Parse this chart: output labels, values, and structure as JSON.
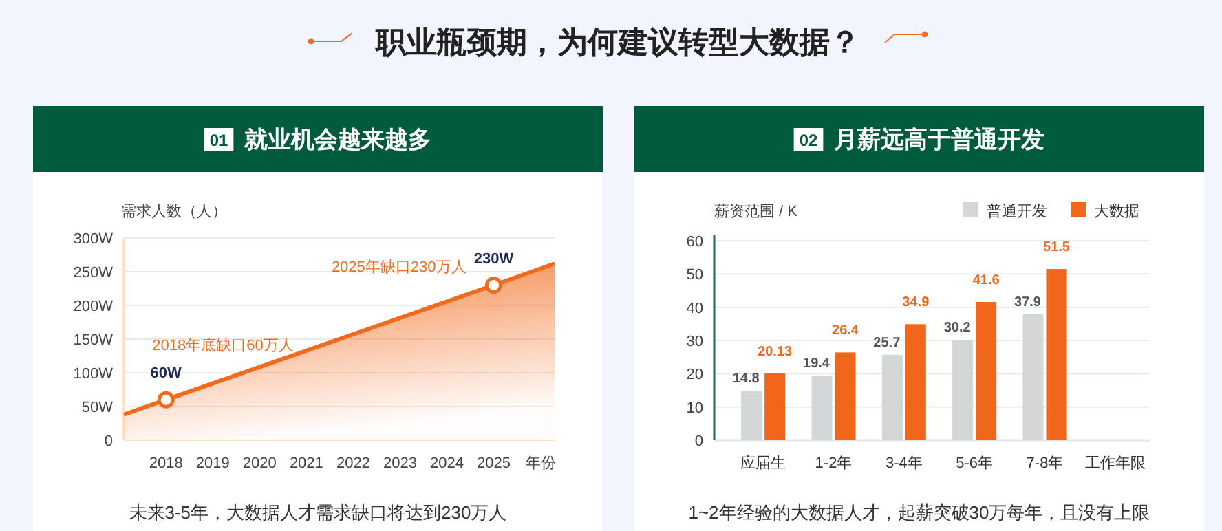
{
  "chart_data": [
    {
      "type": "other",
      "title": "职业瓶颈期，为何建议转型大数据？"
    },
    {
      "type": "line",
      "title": "就业机会越来越多",
      "ylabel": "需求人数（人）",
      "xlabel": "年份",
      "xlim": [
        2017.1,
        2026.3
      ],
      "xticks": [
        2018,
        2019,
        2020,
        2021,
        2022,
        2023,
        2024,
        2025
      ],
      "ylim": [
        0,
        300
      ],
      "yticks": [
        0,
        {
          "value": 50,
          "label": "50W"
        },
        {
          "value": 100,
          "label": "100W"
        },
        {
          "value": 150,
          "label": "150W"
        },
        {
          "value": 200,
          "label": "200W"
        },
        {
          "value": 250,
          "label": "250W"
        },
        {
          "value": 300,
          "label": "300W"
        }
      ],
      "grid": "y",
      "series": [
        {
          "type": "area",
          "color": "#f26b1d",
          "x": [
            2017.1,
            2018,
            2025,
            2026.3
          ],
          "values": [
            38,
            60,
            230,
            262
          ],
          "marker": "none"
        },
        {
          "type": "scatter",
          "color": "#f26b1d",
          "x": [
            2018,
            2025
          ],
          "values": [
            60,
            230
          ],
          "value_labels": [
            "60W",
            "230W"
          ],
          "marker": "circle"
        }
      ],
      "annotations": [
        "01",
        {
          "text": "2018年底缺口60万人",
          "x": 2018,
          "y": 60
        },
        {
          "text": "2025年缺口230万人",
          "x": 2025,
          "y": 230
        },
        "未来3-5年，大数据人才需求缺口将达到230万人"
      ]
    },
    {
      "type": "bar",
      "title": "月薪远高于普通开发",
      "ylabel": "薪资范围 / K",
      "xlabel": "工作年限",
      "categories": [
        "应届生",
        "1-2年",
        "3-4年",
        "5-6年",
        "7-8年"
      ],
      "ylim": [
        0,
        60
      ],
      "yticks": [
        0,
        10,
        20,
        30,
        40,
        50,
        60
      ],
      "grid": "y",
      "legend": "top right",
      "data_labels": true,
      "series": [
        {
          "name": "普通开发",
          "color": "#d3d6d6",
          "values": [
            14.8,
            19.4,
            25.7,
            30.2,
            37.9
          ]
        },
        {
          "name": "大数据",
          "color": "#f0661a",
          "values": [
            20.13,
            26.4,
            34.9,
            41.6,
            51.5
          ]
        }
      ],
      "annotations": [
        "02",
        "1~2年经验的大数据人才，起薪突破30万每年，且没有上限"
      ]
    }
  ]
}
